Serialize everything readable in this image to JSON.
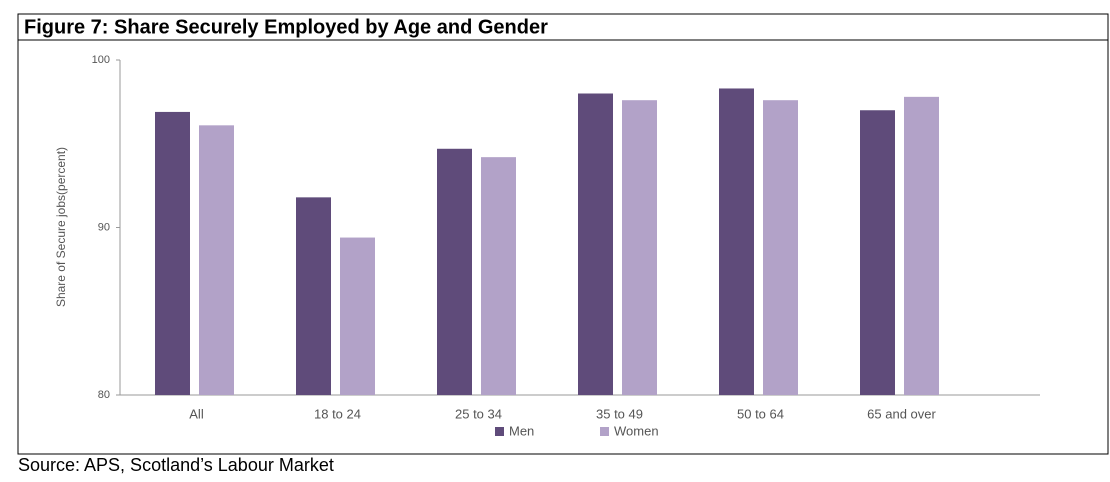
{
  "chart_data": {
    "type": "bar",
    "title": "Figure 7: Share Securely Employed by Age and Gender",
    "source": "Source: APS, Scotland’s Labour Market",
    "y_label": "Share of Secure jobs(percent)",
    "categories": [
      "All",
      "18 to 24",
      "25 to 34",
      "35 to 49",
      "50 to 64",
      "65 and over"
    ],
    "series": [
      {
        "name": "Men",
        "color": "#5f4b7a",
        "values": [
          96.9,
          91.8,
          94.7,
          98.0,
          98.3,
          97.0
        ]
      },
      {
        "name": "Women",
        "color": "#b2a2c8",
        "values": [
          96.1,
          89.4,
          94.2,
          97.6,
          97.6,
          97.8
        ]
      }
    ],
    "ylim": [
      80,
      100
    ],
    "yticks": [
      80,
      90,
      100
    ],
    "grid": false,
    "legend": "bottom"
  }
}
